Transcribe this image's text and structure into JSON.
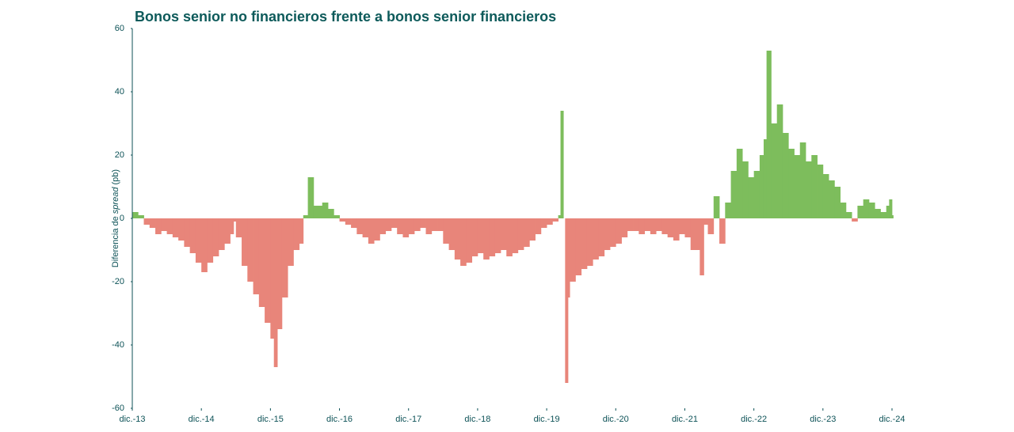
{
  "chart_data": {
    "type": "signed-area",
    "title": "Bonos senior no financieros frente a bonos senior financieros",
    "y_label": [
      "Diferencia de ",
      "spread",
      " (pb)"
    ],
    "positive_color": "#7dbd5c",
    "negative_color": "#e8857a",
    "xlim": [
      0,
      132
    ],
    "xticks": [
      {
        "value": 0,
        "label": "dic.-13"
      },
      {
        "value": 12,
        "label": "dic.-14"
      },
      {
        "value": 24,
        "label": "dic.-15"
      },
      {
        "value": 36,
        "label": "dic.-16"
      },
      {
        "value": 48,
        "label": "dic.-17"
      },
      {
        "value": 60,
        "label": "dic.-18"
      },
      {
        "value": 72,
        "label": "dic.-19"
      },
      {
        "value": 84,
        "label": "dic.-20"
      },
      {
        "value": 96,
        "label": "dic.-21"
      },
      {
        "value": 108,
        "label": "dic.-22"
      },
      {
        "value": 120,
        "label": "dic.-23"
      },
      {
        "value": 132,
        "label": "dic.-24"
      }
    ],
    "ylim": [
      -60,
      60
    ],
    "yticks": [
      -60,
      -40,
      -20,
      0,
      20,
      40,
      60
    ],
    "x": [
      0,
      1,
      2,
      3,
      4,
      5,
      6,
      7,
      8,
      9,
      10,
      11,
      12,
      13,
      14,
      15,
      16,
      17,
      17.6,
      18,
      19,
      20,
      21,
      22,
      23,
      24,
      24.6,
      25.2,
      26,
      27,
      28,
      29,
      29.7,
      30.5,
      31.5,
      33,
      34,
      35,
      36,
      37,
      38,
      39,
      40,
      41,
      42,
      43,
      44,
      45,
      46,
      47,
      48,
      49,
      50,
      51,
      52,
      53,
      54,
      55,
      56,
      57,
      58,
      59,
      60,
      61,
      62,
      63,
      64,
      65,
      66,
      67,
      68,
      69,
      70,
      71,
      72,
      73,
      74,
      74.4,
      74.9,
      75.2,
      75.7,
      76,
      77,
      78,
      79,
      80,
      81,
      82,
      83,
      84,
      85,
      86,
      87,
      88,
      89,
      90,
      91,
      92,
      93,
      94,
      95,
      96,
      97,
      98.6,
      99.3,
      100,
      101,
      102,
      103,
      104,
      105,
      106,
      107,
      108,
      109,
      109.7,
      110.2,
      111,
      112,
      113,
      114,
      115,
      116,
      117,
      118,
      119,
      120,
      121,
      122,
      123,
      124,
      125,
      126,
      127,
      128,
      129,
      130,
      131,
      131.5,
      132
    ],
    "values": [
      2,
      1,
      -2,
      -3,
      -5,
      -4,
      -5,
      -6,
      -7,
      -9,
      -11,
      -14,
      -17,
      -14,
      -12,
      -10,
      -8,
      -5,
      -1,
      -6,
      -15,
      -20,
      -24,
      -28,
      -33,
      -38,
      -47,
      -35,
      -25,
      -15,
      -10,
      -8,
      1,
      13,
      4,
      5,
      3,
      1,
      -1,
      -2,
      -3,
      -5,
      -6,
      -8,
      -7,
      -5,
      -4,
      -3,
      -5,
      -6,
      -5,
      -4,
      -3,
      -5,
      -4,
      -4,
      -8,
      -10,
      -13,
      -15,
      -14,
      -12,
      -11,
      -13,
      -12,
      -11,
      -10,
      -12,
      -11,
      -10,
      -9,
      -7,
      -5,
      -3,
      -2,
      -1,
      1,
      34,
      0,
      -52,
      -25,
      -20,
      -18,
      -16,
      -15,
      -13,
      -12,
      -10,
      -9,
      -8,
      -6,
      -4,
      -4,
      -5,
      -4,
      -5,
      -4,
      -5,
      -6,
      -7,
      -5,
      -6,
      -10,
      -18,
      -2,
      -5,
      7,
      -8,
      5,
      15,
      22,
      18,
      13,
      15,
      20,
      25,
      53,
      30,
      36,
      27,
      22,
      20,
      24,
      18,
      20,
      17,
      14,
      12,
      10,
      5,
      2,
      -1,
      4,
      6,
      5,
      3,
      2,
      4,
      6,
      1
    ]
  }
}
